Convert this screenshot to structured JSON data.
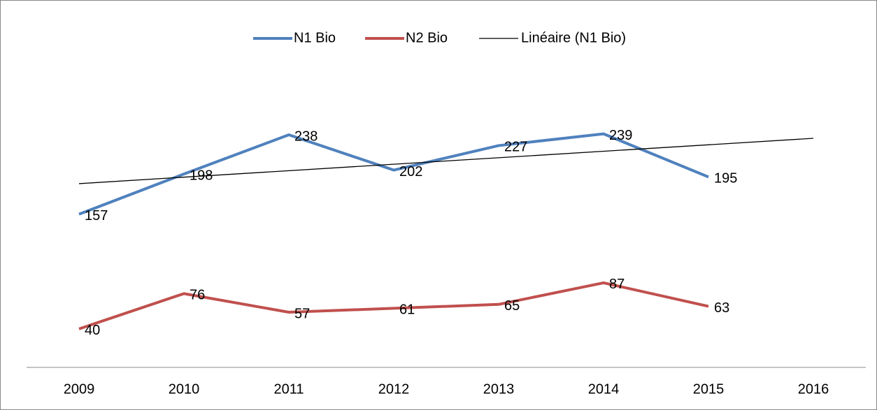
{
  "chart_data": {
    "type": "line",
    "categories": [
      "2009",
      "2010",
      "2011",
      "2012",
      "2013",
      "2014",
      "2015",
      "2016"
    ],
    "series": [
      {
        "name": "N1 Bio",
        "color": "#4f81bd",
        "values": [
          157,
          198,
          238,
          202,
          227,
          239,
          195,
          null
        ]
      },
      {
        "name": "N2 Bio",
        "color": "#c0504d",
        "values": [
          40,
          76,
          57,
          61,
          65,
          87,
          63,
          null
        ]
      }
    ],
    "trendline": {
      "name": "Linéaire (N1 Bio)",
      "series": 0,
      "color": "#000000"
    },
    "ylim": [
      0,
      300
    ],
    "legend": "top"
  }
}
